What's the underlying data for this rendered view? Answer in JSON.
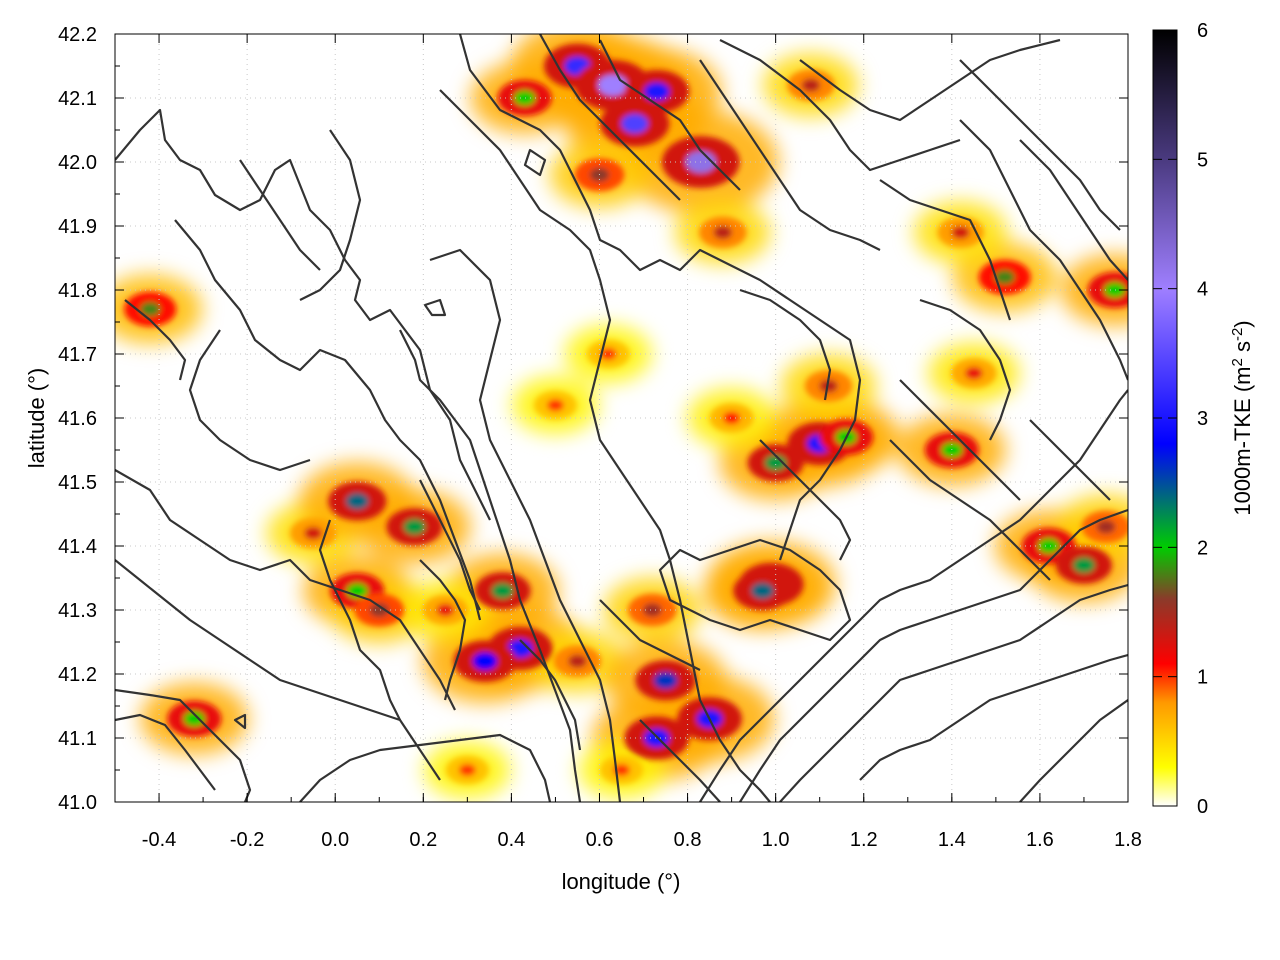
{
  "chart_data": {
    "type": "heatmap",
    "xlabel": "longitude (°)",
    "ylabel": "latitude (°)",
    "xlim": [
      -0.5,
      1.8
    ],
    "ylim": [
      41.0,
      42.2
    ],
    "x_ticks": [
      "-0.4",
      "-0.2",
      "0.0",
      "0.2",
      "0.4",
      "0.6",
      "0.8",
      "1.0",
      "1.2",
      "1.4",
      "1.6",
      "1.8"
    ],
    "x_tick_values": [
      -0.4,
      -0.2,
      0.0,
      0.2,
      0.4,
      0.6,
      0.8,
      1.0,
      1.2,
      1.4,
      1.6,
      1.8
    ],
    "y_ticks": [
      "41.0",
      "41.1",
      "41.2",
      "41.3",
      "41.4",
      "41.5",
      "41.6",
      "41.7",
      "41.8",
      "41.9",
      "42.0",
      "42.1",
      "42.2"
    ],
    "y_tick_values": [
      41.0,
      41.1,
      41.2,
      41.3,
      41.4,
      41.5,
      41.6,
      41.7,
      41.8,
      41.9,
      42.0,
      42.1,
      42.2
    ],
    "grid": "on (dotted)",
    "colorbar": {
      "label_main": "1000m-TKE (m",
      "sup1": "2",
      "label_mid": " s",
      "sup2": "-2",
      "label_end": ")",
      "range": [
        0,
        6
      ],
      "ticks": [
        "0",
        "1",
        "2",
        "3",
        "4",
        "5",
        "6"
      ],
      "tick_values": [
        0,
        1,
        2,
        3,
        4,
        5,
        6
      ],
      "palette": [
        {
          "value": 0.0,
          "color": "#ffffff"
        },
        {
          "value": 0.3,
          "color": "#ffff00"
        },
        {
          "value": 0.8,
          "color": "#ff9900"
        },
        {
          "value": 1.1,
          "color": "#ff0000"
        },
        {
          "value": 1.6,
          "color": "#8b3a2a"
        },
        {
          "value": 2.0,
          "color": "#00cc00"
        },
        {
          "value": 2.8,
          "color": "#0000ff"
        },
        {
          "value": 4.0,
          "color": "#9f7fff"
        },
        {
          "value": 5.0,
          "color": "#4a3a80"
        },
        {
          "value": 6.0,
          "color": "#000000"
        }
      ]
    },
    "tke_hotspots": [
      {
        "lon": 0.42,
        "lat": 41.24,
        "tke": 3.0
      },
      {
        "lon": 0.34,
        "lat": 41.22,
        "tke": 2.8
      },
      {
        "lon": 0.38,
        "lat": 41.33,
        "tke": 2.2
      },
      {
        "lon": 0.05,
        "lat": 41.33,
        "tke": 2.0
      },
      {
        "lon": 0.1,
        "lat": 41.3,
        "tke": 1.6
      },
      {
        "lon": -0.05,
        "lat": 41.42,
        "tke": 1.3
      },
      {
        "lon": 0.05,
        "lat": 41.47,
        "tke": 2.4
      },
      {
        "lon": 0.18,
        "lat": 41.43,
        "tke": 2.2
      },
      {
        "lon": -0.32,
        "lat": 41.13,
        "tke": 2.0
      },
      {
        "lon": -0.42,
        "lat": 41.77,
        "tke": 1.8
      },
      {
        "lon": 0.55,
        "lat": 41.22,
        "tke": 1.4
      },
      {
        "lon": 0.75,
        "lat": 41.19,
        "tke": 2.6
      },
      {
        "lon": 0.85,
        "lat": 41.13,
        "tke": 3.0
      },
      {
        "lon": 0.73,
        "lat": 41.1,
        "tke": 3.0
      },
      {
        "lon": 0.72,
        "lat": 41.3,
        "tke": 1.5
      },
      {
        "lon": 0.99,
        "lat": 41.34,
        "tke": 3.0
      },
      {
        "lon": 0.97,
        "lat": 41.33,
        "tke": 2.4
      },
      {
        "lon": 1.1,
        "lat": 41.56,
        "tke": 3.0
      },
      {
        "lon": 1.0,
        "lat": 41.53,
        "tke": 2.2
      },
      {
        "lon": 1.16,
        "lat": 41.57,
        "tke": 2.0
      },
      {
        "lon": 1.12,
        "lat": 41.65,
        "tke": 1.4
      },
      {
        "lon": 1.4,
        "lat": 41.55,
        "tke": 2.0
      },
      {
        "lon": 1.62,
        "lat": 41.4,
        "tke": 2.0
      },
      {
        "lon": 1.7,
        "lat": 41.37,
        "tke": 2.2
      },
      {
        "lon": 1.75,
        "lat": 41.43,
        "tke": 1.5
      },
      {
        "lon": 1.52,
        "lat": 41.82,
        "tke": 1.8
      },
      {
        "lon": 1.77,
        "lat": 41.8,
        "tke": 2.0
      },
      {
        "lon": 1.42,
        "lat": 41.89,
        "tke": 1.3
      },
      {
        "lon": 0.55,
        "lat": 42.15,
        "tke": 3.2
      },
      {
        "lon": 0.63,
        "lat": 42.12,
        "tke": 4.0
      },
      {
        "lon": 0.68,
        "lat": 42.06,
        "tke": 3.4
      },
      {
        "lon": 0.83,
        "lat": 42.0,
        "tke": 4.2
      },
      {
        "lon": 0.73,
        "lat": 42.11,
        "tke": 3.0
      },
      {
        "lon": 0.43,
        "lat": 42.1,
        "tke": 2.0
      },
      {
        "lon": 0.6,
        "lat": 41.98,
        "tke": 1.6
      },
      {
        "lon": 1.08,
        "lat": 42.12,
        "tke": 1.4
      },
      {
        "lon": 0.88,
        "lat": 41.89,
        "tke": 1.4
      },
      {
        "lon": 0.5,
        "lat": 41.62,
        "tke": 1.0
      },
      {
        "lon": 0.62,
        "lat": 41.7,
        "tke": 1.0
      },
      {
        "lon": 0.9,
        "lat": 41.6,
        "tke": 1.1
      },
      {
        "lon": 1.45,
        "lat": 41.67,
        "tke": 1.2
      },
      {
        "lon": 0.3,
        "lat": 41.05,
        "tke": 1.0
      },
      {
        "lon": 0.65,
        "lat": 41.05,
        "tke": 1.0
      },
      {
        "lon": 0.25,
        "lat": 41.3,
        "tke": 1.2
      }
    ],
    "contour_levels_present": true
  }
}
